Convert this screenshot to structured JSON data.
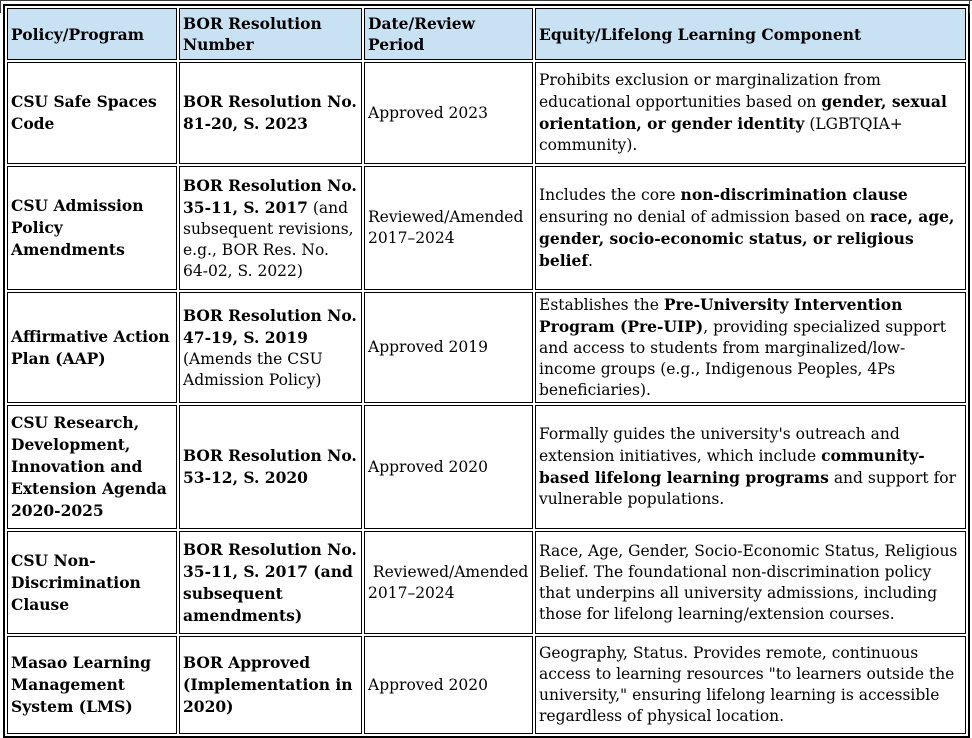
{
  "colors": {
    "header_bg": "#c9e2f3",
    "border": "#000000",
    "text": "#000000"
  },
  "table": {
    "columns": [
      {
        "label": "Policy/Program"
      },
      {
        "label": "BOR Resolution Number"
      },
      {
        "label": "Date/Review Period"
      },
      {
        "label": "Equity/Lifelong Learning Component"
      }
    ],
    "rows": [
      {
        "cells": [
          [
            {
              "text": "CSU Safe Spaces Code",
              "bold": true
            }
          ],
          [
            {
              "text": "BOR Resolution No. 81-20, S. 2023",
              "bold": true
            }
          ],
          [
            {
              "text": "Approved 2023",
              "bold": false
            }
          ],
          [
            {
              "text": "Prohibits exclusion or marginalization from educational opportunities based on ",
              "bold": false
            },
            {
              "text": "gender, sexual orientation, or gender identity",
              "bold": true
            },
            {
              "text": " (LGBTQIA+ community).",
              "bold": false
            }
          ]
        ]
      },
      {
        "cells": [
          [
            {
              "text": "CSU Admission Policy Amendments",
              "bold": true
            }
          ],
          [
            {
              "text": "BOR Resolution No. 35-11, S. 2017",
              "bold": true
            },
            {
              "text": " (and subsequent revisions, e.g., BOR Res. No. 64-02, S. 2022)",
              "bold": false
            }
          ],
          [
            {
              "text": "Reviewed/Amended 2017–2024",
              "bold": false
            }
          ],
          [
            {
              "text": "Includes the core ",
              "bold": false
            },
            {
              "text": "non-discrimination clause",
              "bold": true
            },
            {
              "text": " ensuring no denial of admission based on ",
              "bold": false
            },
            {
              "text": "race, age, gender, socio-economic status, or religious belief",
              "bold": true
            },
            {
              "text": ".",
              "bold": false
            }
          ]
        ]
      },
      {
        "cells": [
          [
            {
              "text": "Affirmative Action Plan (AAP)",
              "bold": true
            }
          ],
          [
            {
              "text": "BOR Resolution No. 47-19, S. 2019",
              "bold": true
            },
            {
              "text": " (Amends the CSU Admission Policy)",
              "bold": false
            }
          ],
          [
            {
              "text": "Approved 2019",
              "bold": false
            }
          ],
          [
            {
              "text": "Establishes the ",
              "bold": false
            },
            {
              "text": "Pre-University Intervention Program (Pre-UIP)",
              "bold": true
            },
            {
              "text": ", providing specialized support and access to students from marginalized/low-income groups (e.g., Indigenous Peoples, 4Ps beneficiaries).",
              "bold": false
            }
          ]
        ]
      },
      {
        "cells": [
          [
            {
              "text": "CSU Research, Development, Innovation and Extension Agenda 2020-2025",
              "bold": true
            }
          ],
          [
            {
              "text": "BOR Resolution No. 53-12, S. 2020",
              "bold": true
            }
          ],
          [
            {
              "text": "Approved 2020",
              "bold": false
            }
          ],
          [
            {
              "text": "Formally guides the university's outreach and extension initiatives, which include ",
              "bold": false
            },
            {
              "text": "community-based lifelong learning programs",
              "bold": true
            },
            {
              "text": " and support for vulnerable populations.",
              "bold": false
            }
          ]
        ]
      },
      {
        "cells": [
          [
            {
              "text": "CSU Non-Discrimination Clause",
              "bold": true
            }
          ],
          [
            {
              "text": "BOR Resolution No. 35-11, S. 2017 (and subsequent amendments)",
              "bold": true
            }
          ],
          [
            {
              "text": " Reviewed/Amended 2017–2024",
              "bold": false
            }
          ],
          [
            {
              "text": "Race, Age, Gender, Socio-Economic Status, Religious Belief. The foundational non-discrimination policy that underpins all university admissions, including those for lifelong learning/extension courses.",
              "bold": false
            }
          ]
        ]
      },
      {
        "cells": [
          [
            {
              "text": "Masao Learning Management System (LMS)",
              "bold": true
            }
          ],
          [
            {
              "text": "BOR Approved (Implementation in 2020)",
              "bold": true
            }
          ],
          [
            {
              "text": "Approved 2020",
              "bold": false
            }
          ],
          [
            {
              "text": "Geography, Status. Provides remote, continuous access to learning resources \"to learners outside the university,\" ensuring lifelong learning is accessible regardless of physical location.",
              "bold": false
            }
          ]
        ]
      }
    ]
  }
}
